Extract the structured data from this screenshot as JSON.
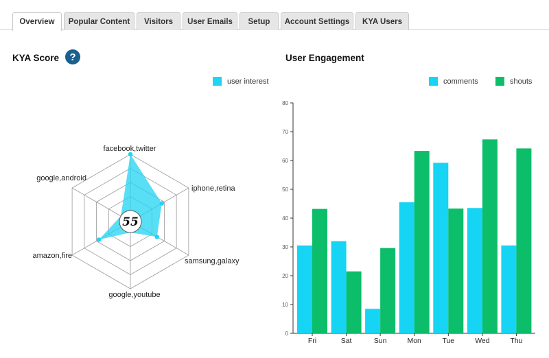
{
  "tabs": [
    {
      "label": "Overview",
      "active": true
    },
    {
      "label": "Popular Content",
      "active": false
    },
    {
      "label": "Visitors",
      "active": false
    },
    {
      "label": "User Emails",
      "active": false
    },
    {
      "label": "Setup",
      "active": false
    },
    {
      "label": "Account Settings",
      "active": false
    },
    {
      "label": "KYA Users",
      "active": false
    }
  ],
  "kya": {
    "title": "KYA Score",
    "help_icon": "question-mark-icon",
    "score": "55",
    "legend_label": "user interest",
    "radar": {
      "axes": [
        "facebook,twitter",
        "iphone,retina",
        "samsung,galaxy",
        "google,youtube",
        "amazon,fire",
        "google,android"
      ],
      "values": [
        1.0,
        0.45,
        0.35,
        0.0,
        0.45,
        0.0
      ]
    }
  },
  "engagement": {
    "title": "User Engagement"
  },
  "colors": {
    "comments": "#16d4f3",
    "shouts": "#0cbd6a",
    "radar_fill": "#20d4f3",
    "help": "#1a5f8e"
  },
  "chart_data": {
    "type": "bar",
    "categories": [
      "Fri",
      "Sat",
      "Sun",
      "Mon",
      "Tue",
      "Wed",
      "Thu"
    ],
    "series": [
      {
        "name": "comments",
        "values": [
          30.5,
          32,
          8.5,
          45.5,
          59.2,
          43.5,
          30.5
        ]
      },
      {
        "name": "shouts",
        "values": [
          43.2,
          21.5,
          29.6,
          63.3,
          43.3,
          67.3,
          64.2
        ]
      }
    ],
    "ylim": [
      0,
      80
    ],
    "yticks": [
      "0",
      "10",
      "20",
      "30",
      "40",
      "50",
      "60",
      "70",
      "80"
    ],
    "legend": "top-right",
    "grid": false
  }
}
